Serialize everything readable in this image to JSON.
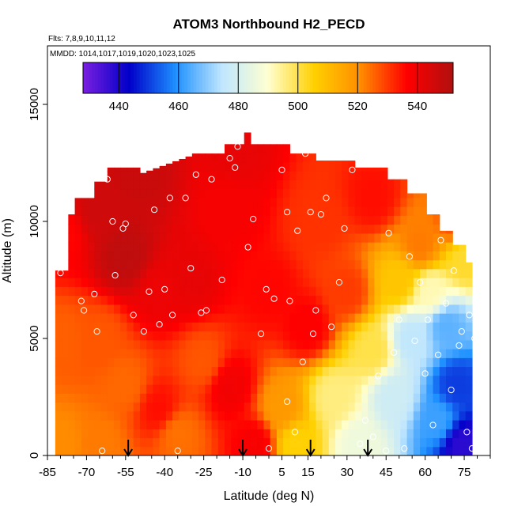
{
  "chart_data": {
    "type": "heatmap",
    "title": "ATOM3 Northbound H2_PECD",
    "flights_label": "Flts: 7,8,9,10,11,12",
    "dates_label": "MMDD: 1014,1017,1019,1020,1023,1025",
    "xlabel": "Latitude (deg N)",
    "ylabel": "Altitude (m)",
    "xlim": [
      -85,
      85
    ],
    "ylim": [
      0,
      17500
    ],
    "x_ticks": [
      -85,
      -70,
      -55,
      -40,
      -25,
      -10,
      5,
      15,
      30,
      45,
      60,
      75
    ],
    "y_ticks": [
      0,
      5000,
      10000,
      15000
    ],
    "colorbar": {
      "min": 428,
      "max": 552,
      "ticks": [
        440,
        460,
        480,
        500,
        520,
        540
      ],
      "colors": [
        "#7a1fe0",
        "#0000c8",
        "#1e90ff",
        "#bfe6ff",
        "#ffffd0",
        "#ffd000",
        "#ff8c00",
        "#ff0000",
        "#b01010"
      ]
    },
    "arrows_latitude": [
      -54,
      -10,
      16,
      38
    ],
    "grid_anchors": [
      {
        "lat": -80,
        "alt": 500,
        "value": 521
      },
      {
        "lat": -80,
        "alt": 5000,
        "value": 526
      },
      {
        "lat": -80,
        "alt": 9500,
        "value": 536
      },
      {
        "lat": -65,
        "alt": 500,
        "value": 523
      },
      {
        "lat": -65,
        "alt": 5000,
        "value": 527
      },
      {
        "lat": -65,
        "alt": 10500,
        "value": 546
      },
      {
        "lat": -55,
        "alt": 8500,
        "value": 549
      },
      {
        "lat": -55,
        "alt": 3000,
        "value": 525
      },
      {
        "lat": -50,
        "alt": 12000,
        "value": 547
      },
      {
        "lat": -42,
        "alt": 2000,
        "value": 535
      },
      {
        "lat": -42,
        "alt": 7000,
        "value": 540
      },
      {
        "lat": -35,
        "alt": 1000,
        "value": 524
      },
      {
        "lat": -30,
        "alt": 7500,
        "value": 541
      },
      {
        "lat": -25,
        "alt": 4000,
        "value": 527
      },
      {
        "lat": -15,
        "alt": 3000,
        "value": 539
      },
      {
        "lat": -15,
        "alt": 10500,
        "value": 538
      },
      {
        "lat": -12,
        "alt": 13000,
        "value": 541
      },
      {
        "lat": -5,
        "alt": 500,
        "value": 538
      },
      {
        "lat": 0,
        "alt": 7000,
        "value": 536
      },
      {
        "lat": 5,
        "alt": 2000,
        "value": 518
      },
      {
        "lat": 10,
        "alt": 500,
        "value": 505
      },
      {
        "lat": 15,
        "alt": 5500,
        "value": 537
      },
      {
        "lat": 20,
        "alt": 10000,
        "value": 531
      },
      {
        "lat": 25,
        "alt": 2500,
        "value": 496
      },
      {
        "lat": 30,
        "alt": 7000,
        "value": 530
      },
      {
        "lat": 35,
        "alt": 500,
        "value": 486
      },
      {
        "lat": 40,
        "alt": 4500,
        "value": 500
      },
      {
        "lat": 40,
        "alt": 11000,
        "value": 535
      },
      {
        "lat": 48,
        "alt": 2500,
        "value": 478
      },
      {
        "lat": 50,
        "alt": 7500,
        "value": 508
      },
      {
        "lat": 55,
        "alt": 5000,
        "value": 475
      },
      {
        "lat": 58,
        "alt": 9000,
        "value": 523
      },
      {
        "lat": 62,
        "alt": 7000,
        "value": 492
      },
      {
        "lat": 65,
        "alt": 1500,
        "value": 462
      },
      {
        "lat": 68,
        "alt": 5500,
        "value": 465
      },
      {
        "lat": 72,
        "alt": 3000,
        "value": 450
      },
      {
        "lat": 74,
        "alt": 500,
        "value": 438
      },
      {
        "lat": 75,
        "alt": 8500,
        "value": 502
      },
      {
        "lat": 72,
        "alt": 10000,
        "value": 528
      }
    ],
    "observations": [
      [
        -80,
        7800
      ],
      [
        -76,
        10500
      ],
      [
        -72,
        6600
      ],
      [
        -71,
        6200
      ],
      [
        -67,
        6900
      ],
      [
        -66,
        5300
      ],
      [
        -64,
        200
      ],
      [
        -62,
        11800
      ],
      [
        -60,
        10000
      ],
      [
        -59,
        7700
      ],
      [
        -56,
        9700
      ],
      [
        -55,
        9900
      ],
      [
        -52,
        6000
      ],
      [
        -48,
        5300
      ],
      [
        -46,
        7000
      ],
      [
        -44,
        10500
      ],
      [
        -42,
        5600
      ],
      [
        -40,
        7100
      ],
      [
        -38,
        11000
      ],
      [
        -37,
        6000
      ],
      [
        -35,
        200
      ],
      [
        -32,
        11000
      ],
      [
        -30,
        8000
      ],
      [
        -28,
        12000
      ],
      [
        -26,
        6100
      ],
      [
        -24,
        6200
      ],
      [
        -22,
        11800
      ],
      [
        -18,
        7500
      ],
      [
        -15,
        12700
      ],
      [
        -13,
        12300
      ],
      [
        -12,
        13200
      ],
      [
        -8,
        8900
      ],
      [
        -6,
        10100
      ],
      [
        -3,
        5200
      ],
      [
        -1,
        7100
      ],
      [
        0,
        300
      ],
      [
        2,
        6700
      ],
      [
        5,
        12200
      ],
      [
        7,
        2300
      ],
      [
        7,
        10400
      ],
      [
        8,
        6600
      ],
      [
        10,
        1000
      ],
      [
        11,
        9600
      ],
      [
        13,
        4000
      ],
      [
        14,
        12900
      ],
      [
        16,
        10400
      ],
      [
        17,
        5200
      ],
      [
        18,
        6200
      ],
      [
        20,
        10300
      ],
      [
        22,
        11000
      ],
      [
        24,
        5500
      ],
      [
        27,
        7400
      ],
      [
        29,
        9700
      ],
      [
        32,
        12200
      ],
      [
        35,
        500
      ],
      [
        37,
        1500
      ],
      [
        40,
        800
      ],
      [
        42,
        3400
      ],
      [
        45,
        200
      ],
      [
        46,
        9500
      ],
      [
        48,
        4400
      ],
      [
        50,
        5800
      ],
      [
        52,
        300
      ],
      [
        54,
        8500
      ],
      [
        56,
        4900
      ],
      [
        58,
        7400
      ],
      [
        60,
        3500
      ],
      [
        61,
        5800
      ],
      [
        63,
        1300
      ],
      [
        65,
        4300
      ],
      [
        66,
        9200
      ],
      [
        68,
        6500
      ],
      [
        70,
        2800
      ],
      [
        71,
        7900
      ],
      [
        73,
        4700
      ],
      [
        74,
        5300
      ],
      [
        76,
        1000
      ],
      [
        77,
        6000
      ],
      [
        78,
        300
      ],
      [
        78,
        9000
      ],
      [
        79,
        5000
      ]
    ]
  }
}
